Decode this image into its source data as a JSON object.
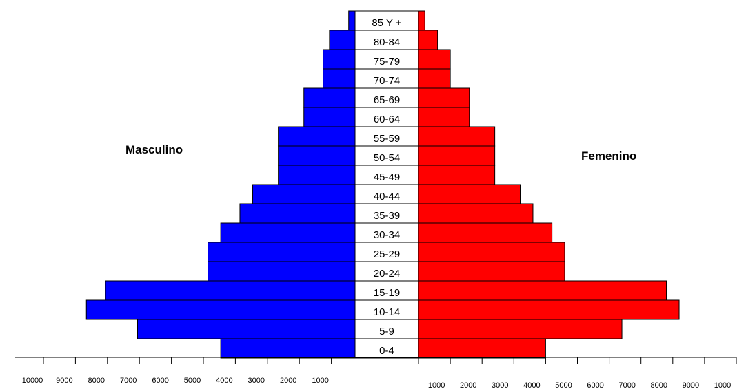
{
  "chart_data": {
    "type": "bar",
    "orientation": "horizontal",
    "subtype": "population-pyramid",
    "categories": [
      "0-4",
      "5-9",
      "10-14",
      "15-19",
      "20-24",
      "25-29",
      "30-34",
      "35-39",
      "40-44",
      "45-49",
      "50-54",
      "55-59",
      "60-64",
      "65-69",
      "70-74",
      "75-79",
      "80-84",
      "85 Y +"
    ],
    "series": [
      {
        "name": "Masculino",
        "color": "#0000ff",
        "values": [
          4200,
          6800,
          8400,
          7800,
          4600,
          4600,
          4200,
          3600,
          3200,
          2400,
          2400,
          2400,
          1600,
          1600,
          1000,
          1000,
          800,
          200
        ]
      },
      {
        "name": "Femenino",
        "color": "#ff0000",
        "values": [
          4000,
          6400,
          8200,
          7800,
          4600,
          4600,
          4200,
          3600,
          3200,
          2400,
          2400,
          2400,
          1600,
          1600,
          1000,
          1000,
          600,
          200
        ]
      }
    ],
    "x_ticks_left": [
      "10000",
      "9000",
      "8000",
      "7000",
      "6000",
      "5000",
      "4000",
      "3000",
      "2000",
      "1000"
    ],
    "x_ticks_right": [
      "1000",
      "2000",
      "3000",
      "4000",
      "5000",
      "6000",
      "7000",
      "8000",
      "9000",
      "1000"
    ],
    "xlim": [
      0,
      10000
    ],
    "grid": false,
    "legend": "none"
  }
}
